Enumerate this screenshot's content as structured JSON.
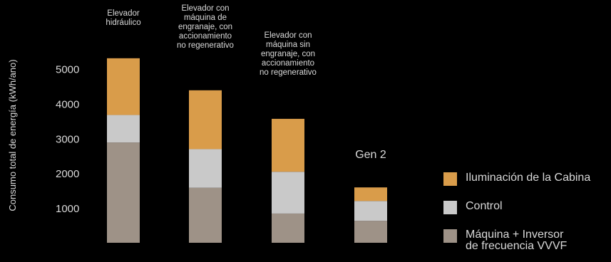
{
  "chart_data": {
    "type": "bar",
    "stacked": true,
    "ylabel": "Consumo total de energía (kWh/ano)",
    "xlabel": "",
    "yticks": [
      1000,
      2000,
      3000,
      4000,
      5000
    ],
    "ylim": [
      0,
      5650
    ],
    "grid": false,
    "legend_position": "right",
    "categories": [
      "Elevador\nhidráulico",
      "Elevador con\nmáquina de\nengranaje, con\naccionamiento\nno regenerativo",
      "Elevador con\nmáquina sin\nengranaje, con\naccionamiento\nno regenerativo",
      "Gen 2"
    ],
    "series": [
      {
        "name": "Máquina + Inversor\nde frecuencia VVVF",
        "color": "#9e9287",
        "values": [
          2880,
          1580,
          840,
          630
        ]
      },
      {
        "name": "Control",
        "color": "#c9c9c9",
        "values": [
          790,
          1110,
          1200,
          570
        ]
      },
      {
        "name": "Iluminación de la Cabina",
        "color": "#d99c4a",
        "values": [
          1630,
          1690,
          1520,
          390
        ]
      }
    ],
    "legend_order": [
      "Iluminación de la Cabina",
      "Control",
      "Máquina + Inversor\nde frecuencia VVVF"
    ]
  }
}
